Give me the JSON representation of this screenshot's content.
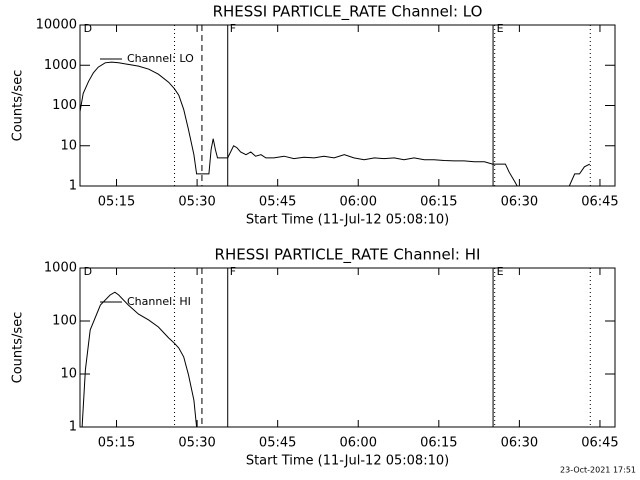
{
  "chart_data": [
    {
      "type": "line",
      "title": "RHESSI PARTICLE_RATE Channel: LO",
      "x_label": "Start Time (11-Jul-12 05:08:10)",
      "y_label": "Counts/sec",
      "ylog": true,
      "grid": false,
      "legend": "top-left",
      "xlim": [
        8.2,
        107.8
      ],
      "ylim": [
        1,
        10000
      ],
      "xticks": [
        {
          "value": 15,
          "label": "05:15"
        },
        {
          "value": 30,
          "label": "05:30"
        },
        {
          "value": 45,
          "label": "05:45"
        },
        {
          "value": 60,
          "label": "06:00"
        },
        {
          "value": 75,
          "label": "06:15"
        },
        {
          "value": 90,
          "label": "06:30"
        },
        {
          "value": 105,
          "label": "06:45"
        }
      ],
      "yticks": [
        1,
        10,
        100,
        1000,
        10000
      ],
      "markers": [
        {
          "x": 25.8,
          "style": "dotted"
        },
        {
          "x": 30.9,
          "style": "dashed"
        },
        {
          "x": 35.7,
          "style": "solid"
        },
        {
          "x": 85.1,
          "style": "solid"
        },
        {
          "x": 85.4,
          "style": "dotted"
        },
        {
          "x": 103.2,
          "style": "dotted"
        }
      ],
      "marker_labels": [
        {
          "text": "D",
          "x": 8.5
        },
        {
          "text": "F",
          "x": 35.7
        },
        {
          "text": "E",
          "x": 85.4
        }
      ],
      "x": [
        8.2,
        8.8,
        9.8,
        10.7,
        11.6,
        12.9,
        14.1,
        15.4,
        17.2,
        19.1,
        21.0,
        22.8,
        24.7,
        25.8,
        26.6,
        27.5,
        28.4,
        29.4,
        29.9,
        30.9,
        32.2,
        32.6,
        33.0,
        33.4,
        33.8,
        35.1,
        35.7,
        36.8,
        37.4,
        38.1,
        39.1,
        40.0,
        40.9,
        41.9,
        42.8,
        44.3,
        46.2,
        48.0,
        49.9,
        51.8,
        53.6,
        55.5,
        57.4,
        59.2,
        61.1,
        63.0,
        64.8,
        66.7,
        68.5,
        70.4,
        72.3,
        74.1,
        76.0,
        77.9,
        79.7,
        81.6,
        83.5,
        85.0,
        86.3,
        87.4,
        88.1,
        89.1,
        89.6,
        91.9,
        95.6,
        99.3,
        100.3,
        101.2,
        102.1,
        103.1
      ],
      "series": [
        {
          "name": "Channel: LO",
          "color": "#000000",
          "values": [
            70,
            200,
            400,
            650,
            900,
            1150,
            1200,
            1150,
            1050,
            950,
            800,
            600,
            380,
            260,
            180,
            80,
            25,
            6,
            2,
            2,
            2,
            8,
            15,
            8,
            5,
            5,
            5,
            10,
            9,
            7,
            6,
            7,
            5.5,
            6,
            5,
            5,
            5.5,
            4.8,
            5.2,
            5,
            5.5,
            5,
            6,
            5,
            4.5,
            5,
            4.8,
            5,
            4.5,
            5,
            4.5,
            4.5,
            4.3,
            4.2,
            4.2,
            4,
            4,
            3.5,
            3.5,
            3.5,
            2.2,
            1.3,
            1,
            1,
            1,
            1,
            2,
            2,
            3,
            3.5
          ]
        }
      ]
    },
    {
      "type": "line",
      "title": "RHESSI PARTICLE_RATE Channel: HI",
      "x_label": "Start Time (11-Jul-12 05:08:10)",
      "y_label": "Counts/sec",
      "ylog": true,
      "grid": false,
      "legend": "top-left",
      "xlim": [
        8.2,
        107.8
      ],
      "ylim": [
        1,
        1000
      ],
      "xticks": [
        {
          "value": 15,
          "label": "05:15"
        },
        {
          "value": 30,
          "label": "05:30"
        },
        {
          "value": 45,
          "label": "05:45"
        },
        {
          "value": 60,
          "label": "06:00"
        },
        {
          "value": 75,
          "label": "06:15"
        },
        {
          "value": 90,
          "label": "06:30"
        },
        {
          "value": 105,
          "label": "06:45"
        }
      ],
      "yticks": [
        1,
        10,
        100,
        1000
      ],
      "markers": [
        {
          "x": 25.8,
          "style": "dotted"
        },
        {
          "x": 30.9,
          "style": "dashed"
        },
        {
          "x": 35.7,
          "style": "solid"
        },
        {
          "x": 85.1,
          "style": "solid"
        },
        {
          "x": 85.4,
          "style": "dotted"
        },
        {
          "x": 103.2,
          "style": "dotted"
        }
      ],
      "marker_labels": [
        {
          "text": "D",
          "x": 8.5
        },
        {
          "text": "F",
          "x": 35.7
        },
        {
          "text": "E",
          "x": 85.4
        }
      ],
      "x": [
        8.6,
        9.2,
        10.1,
        12.0,
        13.8,
        14.7,
        15.4,
        17.2,
        19.1,
        21.0,
        22.8,
        24.7,
        25.8,
        26.6,
        27.5,
        28.4,
        29.4,
        29.9
      ],
      "series": [
        {
          "name": "Channel: HI",
          "color": "#000000",
          "values": [
            1,
            12,
            68,
            200,
            310,
            350,
            310,
            200,
            135,
            104,
            77,
            48,
            38,
            31,
            21,
            9.6,
            3.2,
            1
          ]
        }
      ]
    }
  ],
  "footer": "23-Oct-2021 17:51"
}
